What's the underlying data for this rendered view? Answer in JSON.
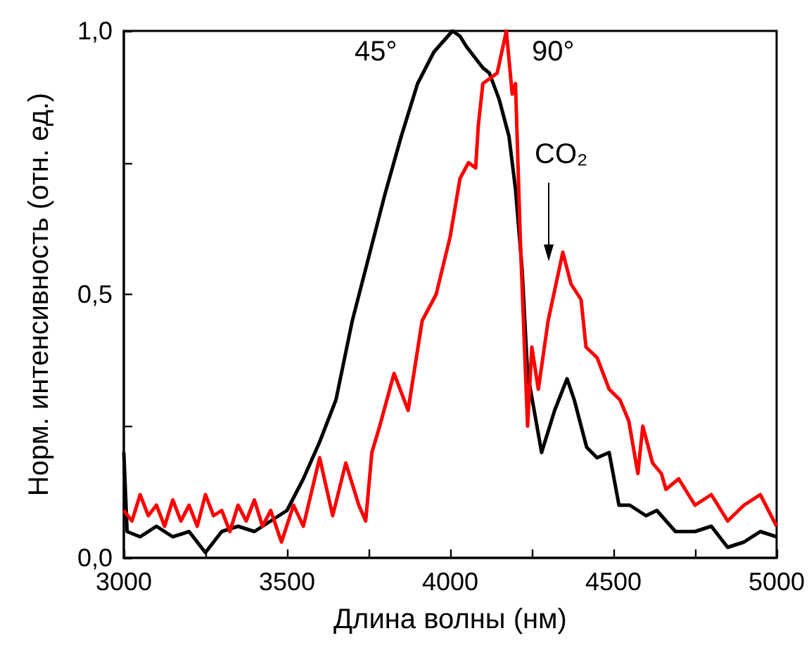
{
  "chart_data": {
    "type": "line",
    "xlabel": "Длина волны (нм)",
    "ylabel": "Норм. интенсивность (отн. ед.)",
    "xlim": [
      3000,
      5000
    ],
    "ylim": [
      0,
      1
    ],
    "xticks": [
      3000,
      {
        "value": 3250,
        "label": null
      },
      3500,
      {
        "value": 3750,
        "label": null
      },
      4000,
      {
        "value": 4250,
        "label": null
      },
      4500,
      {
        "value": 4750,
        "label": null
      },
      5000
    ],
    "yticks": [
      {
        "value": 0,
        "label": "0,0"
      },
      {
        "value": 0.25,
        "label": null
      },
      {
        "value": 0.5,
        "label": "0,5"
      },
      {
        "value": 0.75,
        "label": null
      },
      {
        "value": 1,
        "label": "1,0"
      }
    ],
    "grid": false,
    "marker": "none",
    "line_style": "solid",
    "annotations": [
      "45°",
      "90°",
      "CO₂"
    ],
    "series": [
      {
        "color": "#000000",
        "x": [
          3000,
          3010,
          3050,
          3100,
          3150,
          3200,
          3250,
          3300,
          3350,
          3400,
          3450,
          3500,
          3550,
          3600,
          3650,
          3700,
          3750,
          3800,
          3850,
          3900,
          3950,
          4007,
          4030,
          4050,
          4100,
          4120,
          4150,
          4180,
          4200,
          4220,
          4237,
          4260,
          4280,
          4320,
          4358,
          4380,
          4418,
          4450,
          4487,
          4517,
          4550,
          4600,
          4633,
          4690,
          4750,
          4800,
          4850,
          4900,
          4950,
          5000
        ],
        "values": [
          0.2,
          0.05,
          0.04,
          0.06,
          0.04,
          0.05,
          0.01,
          0.05,
          0.06,
          0.05,
          0.07,
          0.09,
          0.15,
          0.22,
          0.3,
          0.45,
          0.57,
          0.69,
          0.8,
          0.9,
          0.96,
          1.0,
          0.99,
          0.97,
          0.93,
          0.92,
          0.87,
          0.8,
          0.7,
          0.55,
          0.35,
          0.27,
          0.2,
          0.28,
          0.34,
          0.3,
          0.21,
          0.19,
          0.2,
          0.1,
          0.1,
          0.08,
          0.09,
          0.05,
          0.05,
          0.06,
          0.02,
          0.03,
          0.05,
          0.04
        ]
      },
      {
        "color": "#ff0000",
        "x": [
          3000,
          3025,
          3050,
          3075,
          3100,
          3125,
          3150,
          3175,
          3200,
          3225,
          3250,
          3275,
          3300,
          3325,
          3350,
          3375,
          3400,
          3425,
          3450,
          3483,
          3520,
          3550,
          3600,
          3640,
          3680,
          3720,
          3741,
          3760,
          3784,
          3828,
          3871,
          3914,
          3957,
          4000,
          4030,
          4056,
          4078,
          4086,
          4100,
          4144,
          4172,
          4190,
          4200,
          4215,
          4237,
          4250,
          4270,
          4300,
          4345,
          4370,
          4401,
          4416,
          4450,
          4487,
          4520,
          4547,
          4575,
          4590,
          4620,
          4647,
          4661,
          4700,
          4750,
          4800,
          4850,
          4900,
          4950,
          5000
        ],
        "values": [
          0.09,
          0.07,
          0.12,
          0.08,
          0.1,
          0.06,
          0.11,
          0.07,
          0.1,
          0.06,
          0.12,
          0.08,
          0.09,
          0.05,
          0.1,
          0.07,
          0.11,
          0.06,
          0.09,
          0.03,
          0.1,
          0.06,
          0.19,
          0.08,
          0.18,
          0.1,
          0.07,
          0.2,
          0.25,
          0.35,
          0.28,
          0.45,
          0.5,
          0.61,
          0.72,
          0.75,
          0.74,
          0.82,
          0.9,
          0.92,
          1.0,
          0.88,
          0.9,
          0.6,
          0.25,
          0.4,
          0.32,
          0.45,
          0.58,
          0.52,
          0.49,
          0.4,
          0.38,
          0.32,
          0.3,
          0.26,
          0.16,
          0.25,
          0.18,
          0.16,
          0.13,
          0.15,
          0.1,
          0.12,
          0.07,
          0.1,
          0.12,
          0.06
        ]
      }
    ]
  }
}
